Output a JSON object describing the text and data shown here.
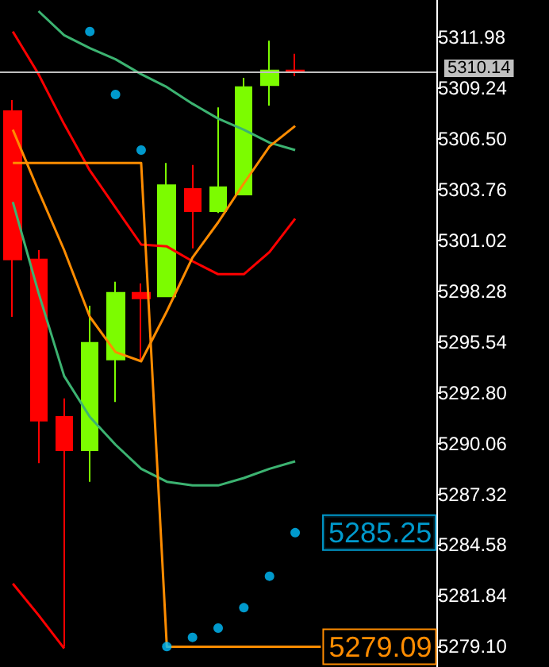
{
  "chart_data": {
    "type": "candlestick",
    "categories": [
      null,
      null,
      null,
      null,
      null,
      null,
      null,
      null,
      null,
      null,
      null,
      null,
      null,
      null,
      null,
      null,
      null
    ],
    "ohlc": [
      [
        5308.0,
        5308.6,
        5296.9,
        5300.0
      ],
      [
        5300.0,
        5300.5,
        5289.0,
        5291.3
      ],
      [
        5291.5,
        5292.5,
        5279.09,
        5289.7
      ],
      [
        5289.7,
        5297.5,
        5288.0,
        5295.5
      ],
      [
        5294.6,
        5298.8,
        5292.3,
        5298.2
      ],
      [
        5298.2,
        5298.7,
        5294.5,
        5297.9
      ],
      [
        5298.0,
        5305.2,
        5298.0,
        5304.0
      ],
      [
        5303.8,
        5305.1,
        5300.6,
        5302.6
      ],
      [
        5302.6,
        5308.2,
        5302.5,
        5303.9
      ],
      [
        5303.5,
        5309.8,
        5303.5,
        5309.3
      ],
      [
        5309.4,
        5311.8,
        5308.3,
        5310.2
      ],
      [
        5310.2,
        5311.1,
        5309.9,
        5310.14
      ],
      null,
      null,
      null,
      null,
      null
    ],
    "colors": [
      "#ff0000",
      "#ff0000",
      "#ff0000",
      "#7cfc00",
      "#7cfc00",
      "#ff0000",
      "#7cfc00",
      "#ff0000",
      "#7cfc00",
      "#7cfc00",
      "#7cfc00",
      "#ff0000",
      null,
      null,
      null,
      null,
      null
    ],
    "series": [
      {
        "type": "line",
        "color": "#3cb371",
        "values": [
          null,
          5313.4,
          5312.1,
          5311.4,
          5310.8,
          5310.0,
          5309.3,
          5308.4,
          5307.6,
          5307.0,
          5306.3,
          5305.9,
          null,
          null,
          null,
          null,
          null
        ]
      },
      {
        "type": "line",
        "color": "#3cb371",
        "values": [
          5303.1,
          5298.2,
          5293.7,
          5291.5,
          5290.0,
          5288.7,
          5288.0,
          5287.8,
          5287.8,
          5288.2,
          5288.7,
          5289.1,
          null,
          null,
          null,
          null,
          null
        ]
      },
      {
        "type": "line",
        "color": "#ff0000",
        "values": [
          5312.3,
          5310.0,
          5307.3,
          5304.8,
          5302.8,
          5300.8,
          5300.7,
          5299.9,
          5299.2,
          5299.2,
          5300.4,
          5302.2,
          null,
          null,
          null,
          null,
          null
        ]
      },
      {
        "type": "line",
        "color": "#ff8c00",
        "values": [
          5307.0,
          5303.7,
          5300.5,
          5296.9,
          5295.0,
          5294.5,
          5297.2,
          5300.1,
          5302.0,
          5304.1,
          5306.1,
          5307.2,
          null,
          null,
          null,
          null,
          null
        ]
      },
      {
        "type": "line",
        "color": "#ff0000",
        "values": [
          5282.5,
          5280.8,
          5279.0,
          null,
          null,
          null,
          null,
          null,
          null,
          null,
          null,
          null,
          null,
          null,
          null,
          null,
          null
        ]
      },
      {
        "type": "line",
        "color": "#ff8c00",
        "values": [
          5305.2,
          5305.2,
          5305.2,
          5305.2,
          5305.2,
          5305.2,
          5279.09,
          5279.09,
          5279.09,
          5279.09,
          5279.09,
          5279.09,
          5279.09,
          null,
          null,
          null,
          null
        ],
        "value_labels": [
          null,
          null,
          null,
          null,
          null,
          null,
          null,
          null,
          null,
          null,
          null,
          null,
          "5279.09",
          null,
          null,
          null,
          null
        ]
      },
      {
        "type": "scatter",
        "color": "#00bfff",
        "marker": "circle",
        "values": [
          null,
          null,
          null,
          5312.3,
          5308.9,
          5305.9,
          5279.1,
          5279.6,
          5280.1,
          5281.2,
          5282.9,
          5285.25,
          null,
          null,
          null,
          null,
          null
        ],
        "value_labels": [
          null,
          null,
          null,
          null,
          null,
          null,
          null,
          null,
          null,
          null,
          null,
          "5285.25",
          null,
          null,
          null,
          null,
          null
        ]
      }
    ],
    "ylim": [
      5278.0,
      5314.0
    ],
    "yticks": [
      {
        "value": 5279.1,
        "label": "5279.10"
      },
      5281.84,
      5284.58,
      5287.32,
      5290.06,
      {
        "value": 5292.8,
        "label": "5292.80"
      },
      5295.54,
      5298.28,
      5301.02,
      5303.76,
      {
        "value": 5306.5,
        "label": "5306.50"
      },
      5309.24,
      5311.98
    ],
    "ref_lines": [
      {
        "axis": "y",
        "value": 5310.14,
        "label": "5310.14",
        "color": "#c0c0c0"
      }
    ],
    "tick_labels": "y"
  }
}
